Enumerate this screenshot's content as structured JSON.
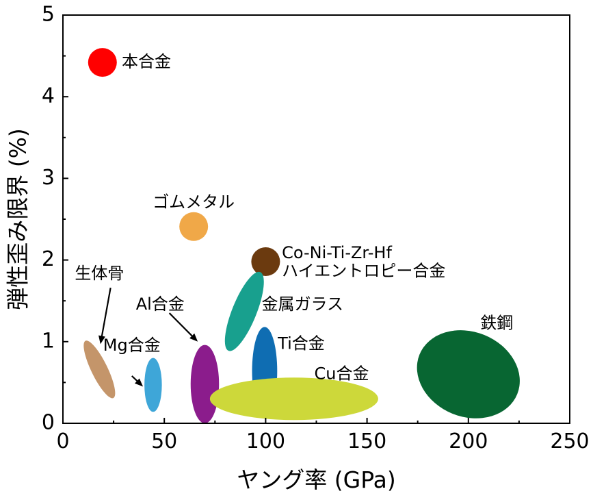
{
  "chart_data": {
    "type": "scatter",
    "xlabel": "ヤング率 (GPa)",
    "ylabel": "弾性歪み限界 (%)",
    "xlim": [
      0,
      250
    ],
    "ylim": [
      0,
      5
    ],
    "xticks": [
      "0",
      "50",
      "100",
      "150",
      "200",
      "250"
    ],
    "yticks": [
      "0",
      "1",
      "2",
      "3",
      "4",
      "5"
    ],
    "grid": false,
    "regions": [
      {
        "name": "本合金",
        "shape": "circle",
        "color": "#ff0000",
        "x": 19.5,
        "y": 4.42,
        "rx": 7,
        "ry": 0.18,
        "angle": 0
      },
      {
        "name": "ゴムメタル",
        "shape": "circle",
        "color": "#f0a848",
        "x": 64.5,
        "y": 2.41,
        "rx": 7,
        "ry": 0.18,
        "angle": 0
      },
      {
        "name": "Co-Ni-Ti-Zr-Hf\nハイエントロピー合金",
        "shape": "circle",
        "color": "#6b3a0f",
        "x": 100,
        "y": 1.98,
        "rx": 7,
        "ry": 0.18,
        "angle": 0
      },
      {
        "name": "生体骨",
        "shape": "ellipse",
        "color": "#c4956a",
        "x": 18,
        "y": 0.66,
        "rx": 4,
        "ry": 0.39,
        "angle": -26
      },
      {
        "name": "Mg合金",
        "shape": "ellipse",
        "color": "#3ea6d8",
        "x": 44.5,
        "y": 0.47,
        "rx": 4.3,
        "ry": 0.33,
        "angle": 0
      },
      {
        "name": "Al合金",
        "shape": "ellipse",
        "color": "#8b1c8c",
        "x": 70,
        "y": 0.48,
        "rx": 7,
        "ry": 0.48,
        "angle": 0
      },
      {
        "name": "金属ガラス",
        "shape": "ellipse",
        "color": "#18a08e",
        "x": 89.5,
        "y": 1.37,
        "rx": 6,
        "ry": 0.52,
        "angle": 22
      },
      {
        "name": "Ti合金",
        "shape": "ellipse",
        "color": "#0f6db2",
        "x": 99.5,
        "y": 0.64,
        "rx": 6.2,
        "ry": 0.54,
        "angle": 0
      },
      {
        "name": "Cu合金",
        "shape": "ellipse",
        "color": "#cdd83a",
        "x": 114,
        "y": 0.3,
        "rx": 41.5,
        "ry": 0.26,
        "angle": 0
      },
      {
        "name": "鉄鋼",
        "shape": "ellipse",
        "color": "#086632",
        "x": 200,
        "y": 0.6,
        "rx": 26,
        "ry": 0.52,
        "angle": 22
      }
    ],
    "annotations": [
      {
        "text": "本合金",
        "anchor_x": 29,
        "anchor_y": 4.42,
        "align": "start"
      },
      {
        "text": "ゴムメタル",
        "anchor_x": 64.5,
        "anchor_y": 2.7,
        "align": "middle"
      },
      {
        "text": "Co-Ni-Ti-Zr-Hf",
        "anchor_x": 108,
        "anchor_y": 2.08,
        "align": "start"
      },
      {
        "text": "ハイエントロピー合金",
        "anchor_x": 108,
        "anchor_y": 1.86,
        "align": "start"
      },
      {
        "text": "金属ガラス",
        "anchor_x": 98,
        "anchor_y": 1.45,
        "align": "start"
      },
      {
        "text": "生体骨",
        "anchor_x": 18,
        "anchor_y": 1.83,
        "align": "middle"
      },
      {
        "text": "Al合金",
        "anchor_x": 48,
        "anchor_y": 1.45,
        "align": "middle"
      },
      {
        "text": "Mg合金",
        "anchor_x": 34,
        "anchor_y": 0.95,
        "align": "middle"
      },
      {
        "text": "Ti合金",
        "anchor_x": 106,
        "anchor_y": 0.97,
        "align": "start"
      },
      {
        "text": "Cu合金",
        "anchor_x": 124,
        "anchor_y": 0.6,
        "align": "start"
      },
      {
        "text": "鉄鋼",
        "anchor_x": 214,
        "anchor_y": 1.22,
        "align": "middle"
      }
    ],
    "arrows": [
      {
        "from": [
          23.5,
          1.66
        ],
        "to": [
          18.5,
          0.97
        ]
      },
      {
        "from": [
          52.5,
          1.35
        ],
        "to": [
          66.5,
          1.0
        ]
      },
      {
        "from": [
          34,
          0.58
        ],
        "to": [
          39.5,
          0.45
        ]
      }
    ]
  }
}
